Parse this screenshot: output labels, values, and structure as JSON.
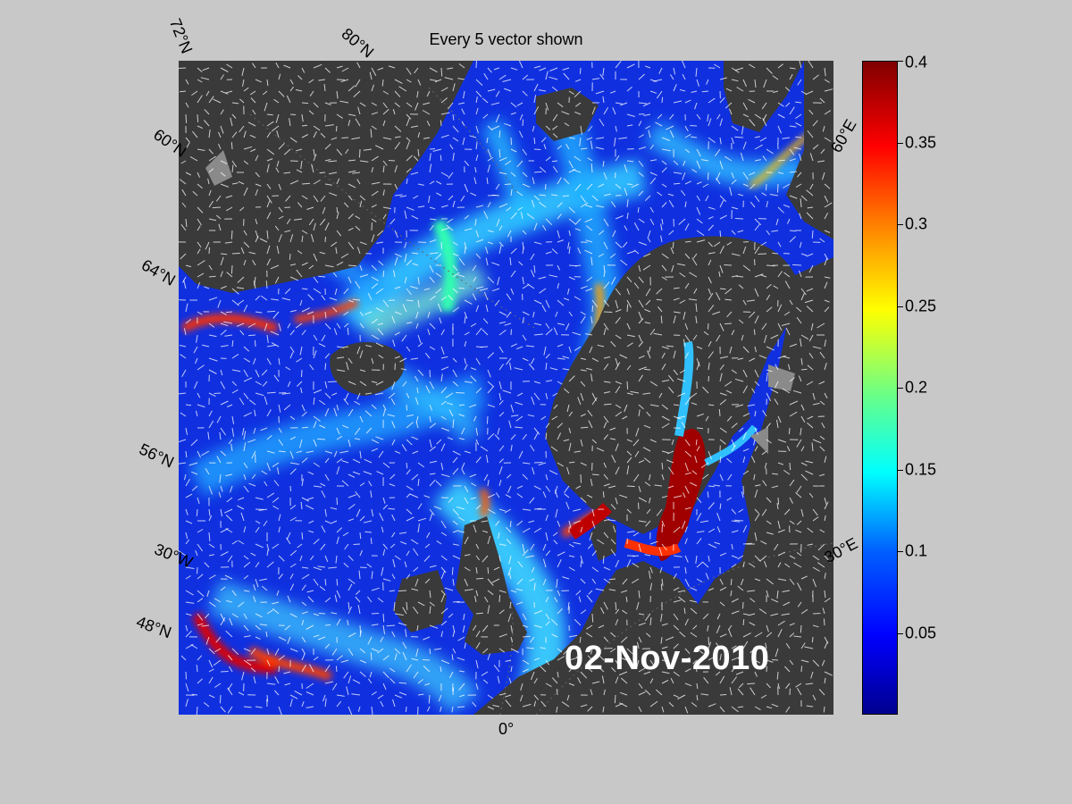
{
  "title": "Every 5 vector shown",
  "date": "02-Nov-2010",
  "grid_labels": {
    "lat_72": "72°N",
    "lat_80": "80°N",
    "lat_60": "60°N",
    "lat_64": "64°N",
    "lat_56": "56°N",
    "lon_30w": "30°W",
    "lat_48": "48°N",
    "lon_0": "0°",
    "lon_30e": "30°E",
    "lon_60e": "60°E"
  },
  "colorbar": {
    "min": 0,
    "max": 0.4,
    "colormap": "jet",
    "ticks": [
      {
        "value": 0.4,
        "label": "0.4"
      },
      {
        "value": 0.35,
        "label": "0.35"
      },
      {
        "value": 0.3,
        "label": "0.3"
      },
      {
        "value": 0.25,
        "label": "0.25"
      },
      {
        "value": 0.2,
        "label": "0.2"
      },
      {
        "value": 0.15,
        "label": "0.15"
      },
      {
        "value": 0.1,
        "label": "0.1"
      },
      {
        "value": 0.05,
        "label": "0.05"
      }
    ]
  },
  "colors": {
    "ocean_base": "#1030e0",
    "land": "#3a3a3a",
    "ice": "#8a8a8a",
    "background": "#c8c8c8"
  }
}
